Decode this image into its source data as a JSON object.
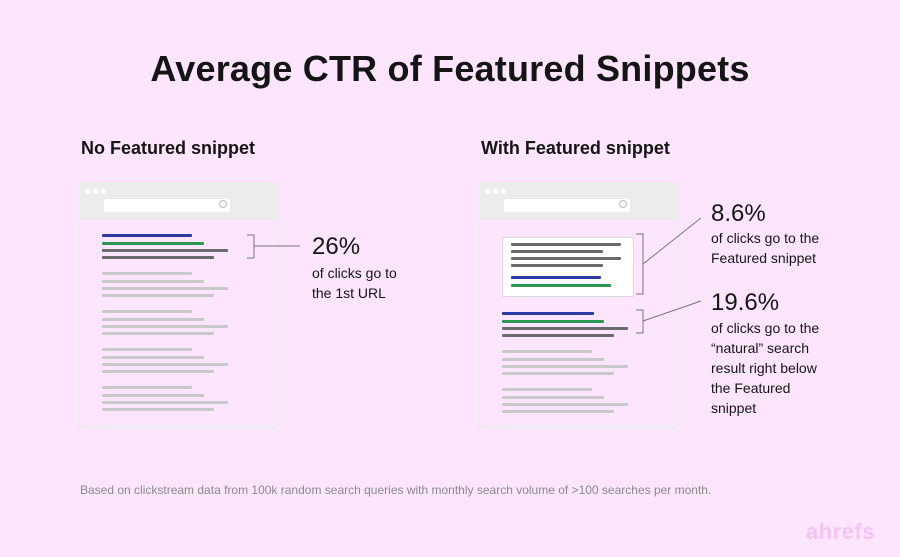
{
  "title": "Average CTR of Featured Snippets",
  "left_panel": {
    "heading": "No Featured snippet",
    "stat": "26%",
    "desc_lines": [
      "of clicks go to",
      "the 1st URL"
    ]
  },
  "right_panel": {
    "heading": "With Featured snippet",
    "stat1": "8.6%",
    "desc1_lines": [
      "of clicks go to the",
      "Featured snippet"
    ],
    "stat2": "19.6%",
    "desc2_lines": [
      "of clicks go to the",
      "“natural” search",
      "result right below",
      "the Featured",
      "snippet"
    ]
  },
  "footnote": "Based on clickstream data from 100k random search queries with monthly search volume of >100 searches per month.",
  "logo": "ahrefs",
  "colors": {
    "background": "#fde6fd",
    "link_blue": "#2b3aa3",
    "url_green": "#2d9650",
    "logo": "#f4c3f4"
  }
}
